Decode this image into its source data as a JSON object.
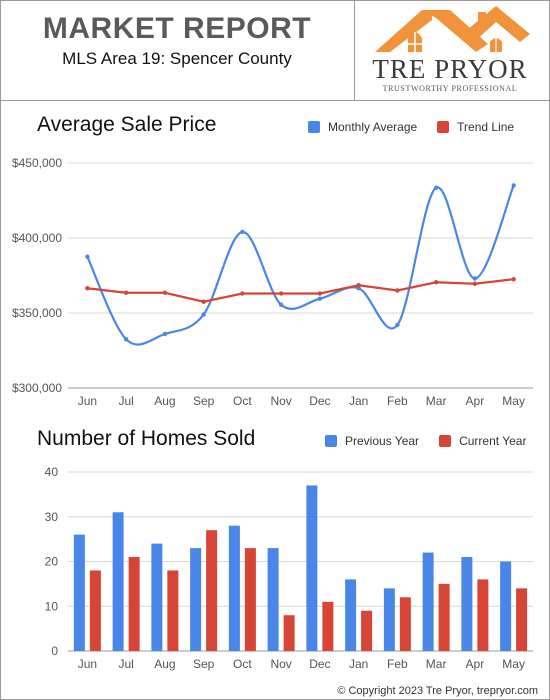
{
  "header": {
    "title": "MARKET REPORT",
    "subtitle": "MLS Area 19: Spencer County"
  },
  "logo": {
    "name": "TRE PRYOR",
    "tagline": "TRUSTWORTHY PROFESSIONAL"
  },
  "colors": {
    "blue": "#4a86e8",
    "red": "#d64535",
    "house_orange": "#f0933a"
  },
  "footer": {
    "text": "© Copyright 2023 Tre Pryor, trepryor.com"
  },
  "chart_data": [
    {
      "type": "line",
      "title": "Average Sale Price",
      "categories": [
        "Jun",
        "Jul",
        "Aug",
        "Sep",
        "Oct",
        "Nov",
        "Dec",
        "Jan",
        "Feb",
        "Mar",
        "Apr",
        "May"
      ],
      "series": [
        {
          "name": "Monthly Average",
          "color": "#4a86e8",
          "values": [
            387500,
            332500,
            336000,
            349000,
            404000,
            355500,
            359500,
            366500,
            342000,
            433500,
            373000,
            435000
          ]
        },
        {
          "name": "Trend Line",
          "color": "#d64535",
          "values": [
            366500,
            363500,
            363500,
            357500,
            363000,
            363000,
            363000,
            368500,
            365000,
            370500,
            369500,
            372500
          ]
        }
      ],
      "yticks": [
        "$300,000",
        "$350,000",
        "$400,000",
        "$450,000"
      ],
      "ylim": [
        300000,
        450000
      ],
      "grid": true,
      "legend": "top-right"
    },
    {
      "type": "bar",
      "title": "Number of Homes Sold",
      "categories": [
        "Jun",
        "Jul",
        "Aug",
        "Sep",
        "Oct",
        "Nov",
        "Dec",
        "Jan",
        "Feb",
        "Mar",
        "Apr",
        "May"
      ],
      "series": [
        {
          "name": "Previous Year",
          "color": "#4a86e8",
          "values": [
            26,
            31,
            24,
            23,
            28,
            23,
            37,
            16,
            14,
            22,
            21,
            20
          ]
        },
        {
          "name": "Current Year",
          "color": "#d64535",
          "values": [
            18,
            21,
            18,
            27,
            23,
            8,
            11,
            9,
            12,
            15,
            16,
            14
          ]
        }
      ],
      "yticks": [
        "0",
        "10",
        "20",
        "30",
        "40"
      ],
      "ylim": [
        0,
        40
      ],
      "grid": true,
      "legend": "top-right"
    }
  ]
}
